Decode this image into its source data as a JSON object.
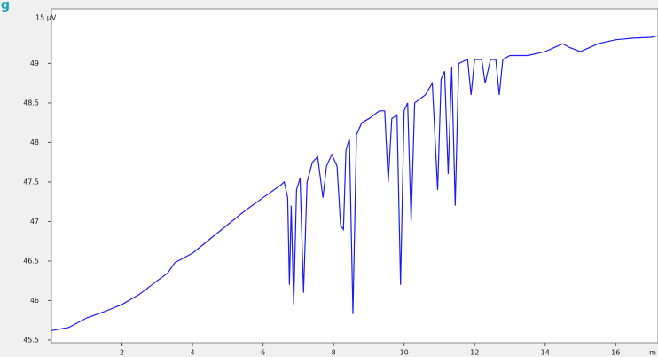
{
  "chart_data": {
    "type": "line",
    "header": "g",
    "y_label": "15 µV",
    "x_label": "m",
    "x": [
      0,
      0.5,
      1,
      1.5,
      2,
      2.5,
      3,
      3.3,
      3.5,
      4,
      4.5,
      5,
      5.5,
      6,
      6.5,
      6.6,
      6.7,
      6.75,
      6.8,
      6.87,
      6.95,
      7.05,
      7.15,
      7.25,
      7.4,
      7.55,
      7.7,
      7.8,
      7.95,
      8.1,
      8.2,
      8.28,
      8.35,
      8.45,
      8.55,
      8.65,
      8.8,
      9.0,
      9.3,
      9.45,
      9.55,
      9.65,
      9.8,
      9.9,
      10.0,
      10.1,
      10.2,
      10.3,
      10.6,
      10.8,
      10.95,
      11.05,
      11.15,
      11.25,
      11.35,
      11.45,
      11.55,
      11.8,
      11.9,
      12.0,
      12.2,
      12.3,
      12.45,
      12.6,
      12.7,
      12.8,
      13.0,
      13.5,
      14,
      14.5,
      14.7,
      15,
      15.5,
      16,
      16.5,
      17,
      17.2
    ],
    "series": [
      {
        "color": "#1c1cf0",
        "values": [
          45.62,
          45.66,
          45.78,
          45.86,
          45.95,
          46.08,
          46.25,
          46.35,
          46.48,
          46.6,
          46.78,
          46.96,
          47.14,
          47.3,
          47.46,
          47.5,
          47.3,
          46.2,
          47.2,
          45.95,
          47.4,
          47.55,
          46.1,
          47.5,
          47.75,
          47.82,
          47.3,
          47.7,
          47.85,
          47.7,
          46.95,
          46.9,
          47.9,
          48.05,
          45.83,
          48.1,
          48.25,
          48.3,
          48.4,
          48.4,
          47.5,
          48.3,
          48.35,
          46.2,
          48.4,
          48.5,
          47.0,
          48.5,
          48.6,
          48.75,
          47.4,
          48.8,
          48.9,
          47.6,
          48.95,
          47.2,
          49.0,
          49.05,
          48.6,
          49.05,
          49.05,
          48.75,
          49.05,
          49.05,
          48.6,
          49.05,
          49.1,
          49.1,
          49.15,
          49.25,
          49.2,
          49.15,
          49.25,
          49.3,
          49.32,
          49.33,
          49.35
        ]
      }
    ],
    "xlim": [
      0,
      17.2
    ],
    "xticks": [
      2,
      4,
      6,
      8,
      10,
      12,
      14,
      16
    ],
    "ylim": [
      45.466,
      49.69
    ],
    "yticks": [
      45.5,
      46,
      46.5,
      47,
      47.5,
      48,
      48.5,
      49
    ]
  }
}
